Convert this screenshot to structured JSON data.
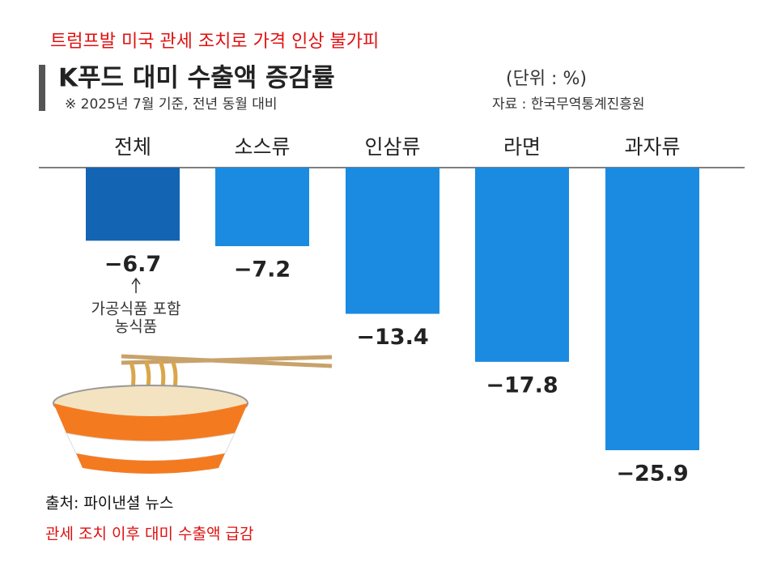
{
  "slide_title": "트럼프발 미국 관세 조치로 가격 인상 불가피",
  "chart_data": {
    "type": "bar",
    "title": "K푸드 대미 수출액 증감률",
    "unit": "(단위 : %)",
    "note": "※ 2025년 7월 기준, 전년 동월 대비",
    "source": "자료 : 한국무역통계진흥원",
    "categories": [
      "전체",
      "소스류",
      "인삼류",
      "라면",
      "과자류"
    ],
    "values": [
      -6.7,
      -7.2,
      -13.4,
      -17.8,
      -25.9
    ],
    "value_labels": [
      "−6.7",
      "−7.2",
      "−13.4",
      "−17.8",
      "−25.9"
    ],
    "colors": [
      "#1464b4",
      "#1a8be0",
      "#1a8be0",
      "#1a8be0",
      "#1a8be0"
    ],
    "annotation": [
      "가공식품 포함",
      "농식품"
    ]
  },
  "footer": {
    "source": "출처: 파이낸셜 뉴스",
    "caption": "관세 조치 이후 대미 수출액 급감"
  }
}
